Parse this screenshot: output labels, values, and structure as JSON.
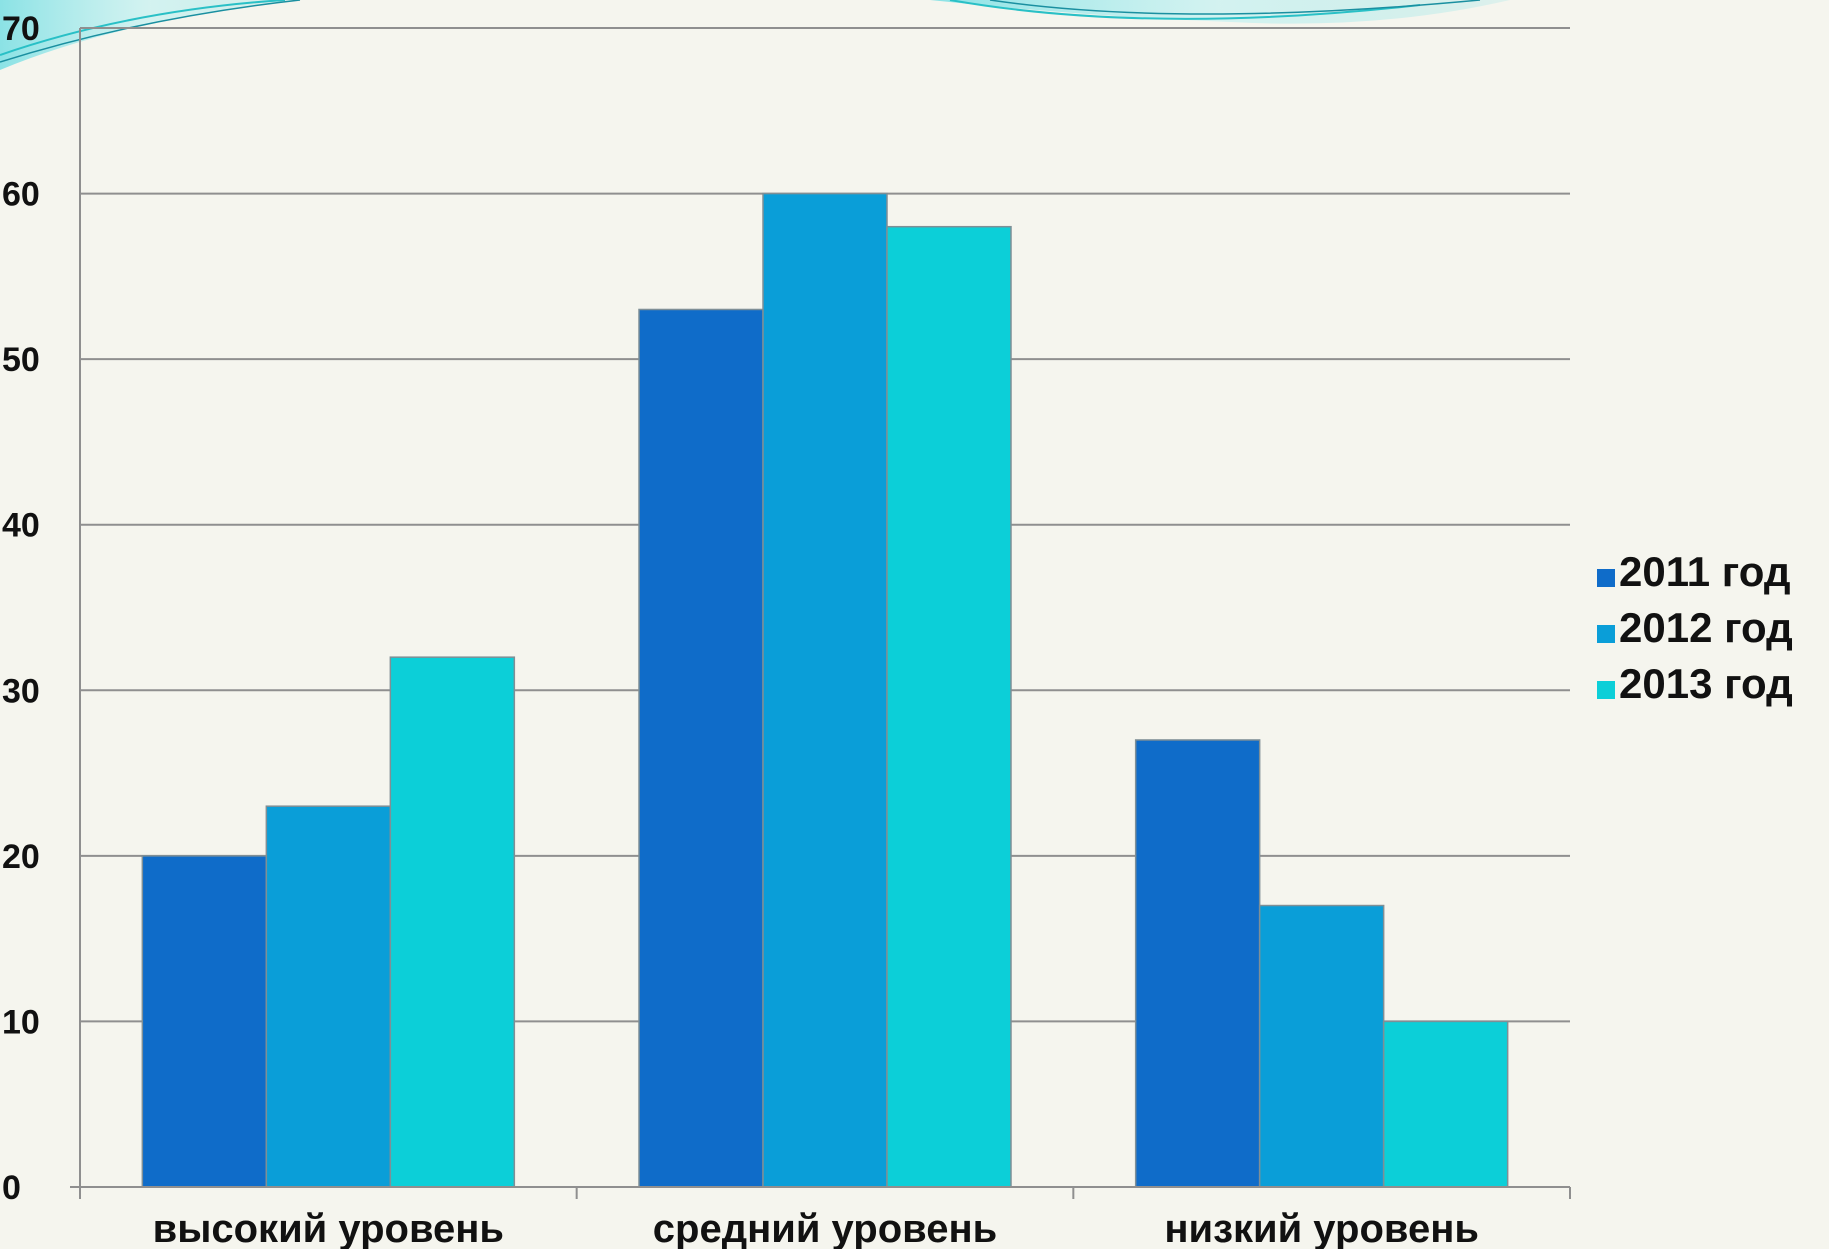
{
  "chart_data": {
    "type": "bar",
    "categories": [
      "высокий уровень",
      "средний уровень",
      "низкий уровень"
    ],
    "series": [
      {
        "name": "2011 год",
        "values": [
          20,
          53,
          27
        ],
        "color": "#0f6cc9"
      },
      {
        "name": "2012 год",
        "values": [
          23,
          60,
          17
        ],
        "color": "#0a9ed8"
      },
      {
        "name": "2013 год",
        "values": [
          32,
          58,
          10
        ],
        "color": "#0ccfd8"
      }
    ],
    "y_ticks": [
      0,
      10,
      20,
      30,
      40,
      50,
      60,
      70
    ],
    "ylim": [
      0,
      70
    ],
    "grid": true,
    "legend_position": "right",
    "title": "",
    "xlabel": "",
    "ylabel": ""
  },
  "colors": {
    "background": "#f5f5ee",
    "gridline": "#8f8f8f",
    "axis": "#8f8f8f",
    "bar_outline": "#7f8f96",
    "decoration_swoosh": "#2cc4c8"
  }
}
